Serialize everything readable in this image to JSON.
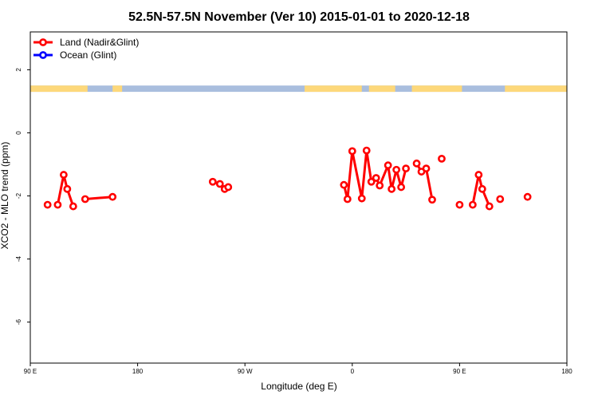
{
  "chart_data": {
    "type": "line",
    "title": "52.5N-57.5N November (Ver 10)   2015-01-01 to 2020-12-18",
    "xlabel": "Longitude (deg E)",
    "ylabel": "XCO2 - MLO trend (ppm)",
    "xlim": [
      90,
      540
    ],
    "ylim": [
      -7.3,
      3.2
    ],
    "x_ticks": [
      {
        "value": 90,
        "label": "90 E"
      },
      {
        "value": 180,
        "label": "180"
      },
      {
        "value": 270,
        "label": "90 W"
      },
      {
        "value": 360,
        "label": "0"
      },
      {
        "value": 450,
        "label": "90 E"
      },
      {
        "value": 540,
        "label": "180"
      }
    ],
    "y_ticks": [
      {
        "value": 2,
        "label": "2"
      },
      {
        "value": 0,
        "label": "0"
      },
      {
        "value": -2,
        "label": "-2"
      },
      {
        "value": -4,
        "label": "-4"
      },
      {
        "value": -6,
        "label": "-6"
      }
    ],
    "legend": {
      "position": "top-left",
      "entries": [
        {
          "label": "Land (Nadir&Glint)",
          "color": "#ff0000"
        },
        {
          "label": "Ocean (Glint)",
          "color": "#0000ff"
        }
      ]
    },
    "land_ocean_strip": {
      "y_range": [
        1.3,
        1.5
      ],
      "land_color": "#fdd87a",
      "ocean_color": "#a9bede",
      "land_segments": [
        [
          90,
          138
        ],
        [
          159,
          167
        ],
        [
          320,
          368
        ],
        [
          374,
          396
        ],
        [
          410,
          452
        ],
        [
          488,
          548
        ]
      ]
    },
    "series": [
      {
        "name": "Land (Nadir&Glint)",
        "color": "#ff0000",
        "segments": [
          [
            [
              104.5,
              -2.28
            ]
          ],
          [
            [
              113,
              -2.28
            ],
            [
              118,
              -1.33
            ],
            [
              121,
              -1.78
            ],
            [
              126,
              -2.33
            ]
          ],
          [
            [
              136,
              -2.1
            ],
            [
              159,
              -2.03
            ]
          ],
          [
            [
              243,
              -1.55
            ],
            [
              249,
              -1.62
            ],
            [
              253,
              -1.78
            ],
            [
              256,
              -1.72
            ]
          ],
          [
            [
              353,
              -1.65
            ],
            [
              356,
              -2.1
            ],
            [
              360,
              -0.58
            ],
            [
              368,
              -2.08
            ],
            [
              372,
              -0.56
            ],
            [
              376,
              -1.55
            ],
            [
              380,
              -1.43
            ],
            [
              383,
              -1.67
            ],
            [
              390,
              -1.03
            ],
            [
              393,
              -1.78
            ],
            [
              397,
              -1.17
            ],
            [
              401,
              -1.72
            ],
            [
              405,
              -1.13
            ]
          ],
          [
            [
              414,
              -0.97
            ],
            [
              418,
              -1.23
            ],
            [
              422,
              -1.13
            ],
            [
              427,
              -2.12
            ]
          ],
          [
            [
              435,
              -0.82
            ]
          ],
          [
            [
              450,
              -2.28
            ]
          ],
          [
            [
              461,
              -2.28
            ],
            [
              466,
              -1.33
            ],
            [
              469,
              -1.78
            ],
            [
              475,
              -2.33
            ]
          ],
          [
            [
              484,
              -2.1
            ]
          ],
          [
            [
              507,
              -2.03
            ]
          ]
        ]
      },
      {
        "name": "Ocean (Glint)",
        "color": "#0000ff",
        "segments": []
      }
    ]
  }
}
